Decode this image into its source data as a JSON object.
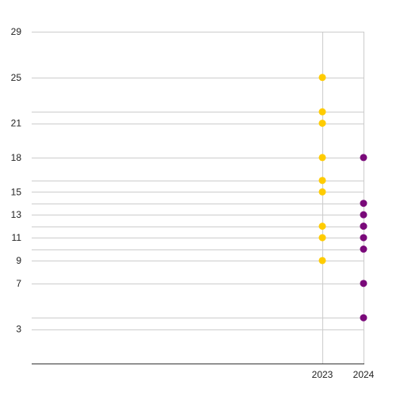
{
  "chart_data": {
    "type": "scatter",
    "title": "",
    "xlabel": "",
    "ylabel": "",
    "grid": true,
    "x_ticks": [
      "2023",
      "2024"
    ],
    "y_ticks": [
      3,
      7,
      9,
      11,
      13,
      15,
      18,
      21,
      25,
      29
    ],
    "y_gridlines": [
      3,
      4,
      7,
      9,
      10,
      11,
      12,
      13,
      14,
      15,
      16,
      18,
      21,
      22,
      25,
      29
    ],
    "ylim": [
      0,
      29
    ],
    "series": [
      {
        "x": "2023",
        "color": "#FFCC00",
        "values": [
          25,
          22,
          21,
          18,
          16,
          15,
          12,
          11,
          9
        ]
      },
      {
        "x": "2024",
        "color": "#7A0A7A",
        "values": [
          18,
          14,
          13,
          12,
          12,
          11,
          10,
          7,
          4
        ]
      }
    ]
  }
}
